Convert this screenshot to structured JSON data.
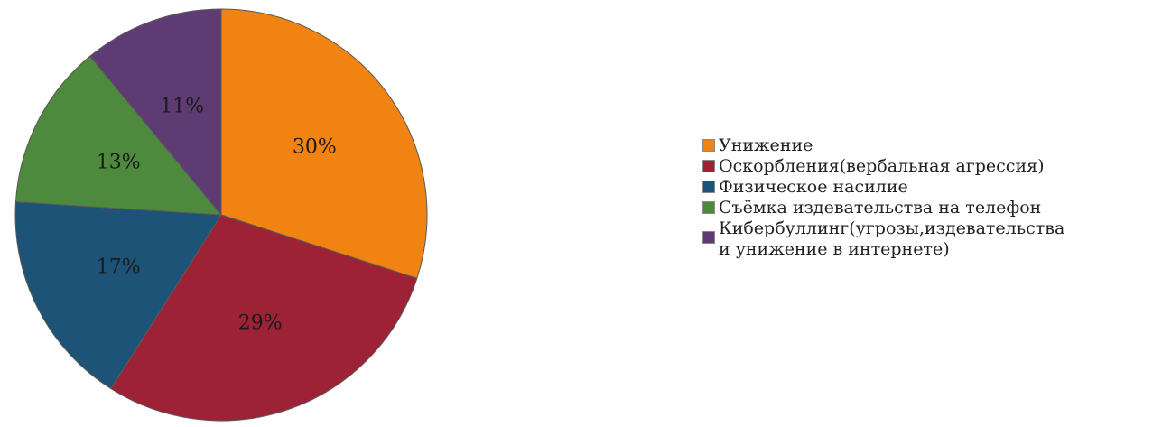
{
  "chart_data": {
    "type": "pie",
    "title": "",
    "start_angle_deg": 0,
    "direction": "clockwise",
    "slices": [
      {
        "label": "Унижение",
        "value": 30,
        "value_label": "30%",
        "color": "#F08312"
      },
      {
        "label": "Оскорбления(вербальная агрессия)",
        "value": 29,
        "value_label": "29%",
        "color": "#9E2235"
      },
      {
        "label": "Физическое насилие",
        "value": 17,
        "value_label": "17%",
        "color": "#1D5377"
      },
      {
        "label": "Съёмка издевательства на телефон",
        "value": 13,
        "value_label": "13%",
        "color": "#4E8A3E"
      },
      {
        "label": "Кибербуллинг(угрозы,издевательства\nи унижение в интернете)",
        "value": 11,
        "value_label": "11%",
        "color": "#5F3B73"
      }
    ],
    "legend_position": "right"
  },
  "colors": {
    "slice_border": "#5a5a5a",
    "label_text": "#1a1a1a"
  }
}
